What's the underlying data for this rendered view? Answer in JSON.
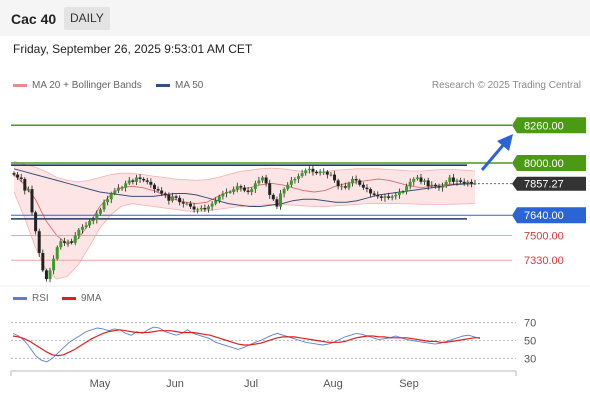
{
  "header": {
    "symbol": "Cac 40",
    "period": "DAILY"
  },
  "timestamp": "Friday, September 26, 2025 9:53:01 AM CET",
  "credit": "Research © 2025 Trading Central",
  "legend": {
    "ma20_label": "MA 20 + Bollinger Bands",
    "ma50_label": "MA 50",
    "rsi_label": "RSI",
    "rsi_ma_label": "9MA"
  },
  "colors": {
    "green": "#4a9a14",
    "blue": "#2a64d6",
    "navy": "#1e3a6a",
    "red": "#d93a3a",
    "bollinger_fill": "#fde0e0",
    "ma50": "#3a4e78",
    "rsi": "#5b7fd6",
    "rsi_ma": "#e02020",
    "current": "#333333"
  },
  "chart_data": [
    {
      "type": "candlestick",
      "x_ticks": [
        "May",
        "Jun",
        "Jul",
        "Aug",
        "Sep"
      ],
      "ylim": [
        7180,
        8310
      ],
      "current_price": "7857.27",
      "levels": [
        {
          "label": "8260.00",
          "value": 8260,
          "style": "box",
          "color": "green"
        },
        {
          "label": "8000.00",
          "value": 8000,
          "style": "box",
          "color": "green"
        },
        {
          "label": "7640.00",
          "value": 7640,
          "style": "box",
          "color": "blue"
        },
        {
          "label": "7500.00",
          "value": 7500,
          "style": "text",
          "color": "red"
        },
        {
          "label": "7330.00",
          "value": 7330,
          "style": "text",
          "color": "red"
        }
      ],
      "closes": [
        7920,
        7900,
        7890,
        7810,
        7820,
        7660,
        7530,
        7380,
        7260,
        7200,
        7260,
        7340,
        7420,
        7460,
        7450,
        7460,
        7450,
        7500,
        7540,
        7560,
        7570,
        7600,
        7610,
        7650,
        7680,
        7730,
        7750,
        7790,
        7810,
        7830,
        7830,
        7860,
        7880,
        7870,
        7900,
        7890,
        7880,
        7870,
        7850,
        7820,
        7810,
        7790,
        7780,
        7740,
        7770,
        7760,
        7730,
        7720,
        7720,
        7700,
        7680,
        7680,
        7690,
        7680,
        7700,
        7720,
        7740,
        7770,
        7790,
        7800,
        7800,
        7820,
        7840,
        7830,
        7810,
        7800,
        7820,
        7860,
        7880,
        7900,
        7860,
        7780,
        7750,
        7700,
        7790,
        7820,
        7850,
        7880,
        7890,
        7910,
        7930,
        7950,
        7960,
        7940,
        7930,
        7940,
        7940,
        7920,
        7920,
        7880,
        7840,
        7840,
        7830,
        7860,
        7890,
        7880,
        7850,
        7830,
        7820,
        7790,
        7780,
        7770,
        7760,
        7770,
        7760,
        7770,
        7780,
        7800,
        7800,
        7840,
        7870,
        7890,
        7900,
        7870,
        7880,
        7840,
        7850,
        7840,
        7830,
        7840,
        7870,
        7900,
        7870,
        7880,
        7870,
        7860,
        7870,
        7860,
        7860
      ],
      "ma50": [
        7960,
        7940,
        7920,
        7900,
        7880,
        7860,
        7840,
        7820,
        7800,
        7790,
        7780,
        7770,
        7770,
        7770,
        7780,
        7790,
        7790,
        7780,
        7760,
        7740,
        7720,
        7710,
        7700,
        7700,
        7710,
        7720,
        7740,
        7750,
        7750,
        7740,
        7730,
        7730,
        7740,
        7760,
        7780,
        7790,
        7800,
        7810,
        7820,
        7830,
        7840,
        7850,
        7855,
        7857
      ],
      "ma20": [
        7920,
        7850,
        7750,
        7600,
        7500,
        7440,
        7480,
        7580,
        7700,
        7780,
        7830,
        7840,
        7830,
        7810,
        7780,
        7750,
        7730,
        7720,
        7730,
        7770,
        7800,
        7820,
        7830,
        7850,
        7860,
        7850,
        7830,
        7810,
        7800,
        7810,
        7840,
        7860,
        7870,
        7880,
        7890,
        7880,
        7860,
        7840,
        7830,
        7840,
        7850,
        7855,
        7860,
        7858
      ],
      "bollinger_upper": [
        8010,
        7990,
        7970,
        7940,
        7900,
        7880,
        7870,
        7880,
        7900,
        7920,
        7930,
        7930,
        7920,
        7910,
        7900,
        7890,
        7885,
        7880,
        7885,
        7900,
        7920,
        7940,
        7950,
        7960,
        7965,
        7960,
        7950,
        7940,
        7935,
        7940,
        7950,
        7955,
        7960,
        7960,
        7960,
        7955,
        7950,
        7945,
        7945,
        7950,
        7955,
        7955,
        7950,
        7945
      ],
      "bollinger_lower": [
        7800,
        7620,
        7420,
        7260,
        7200,
        7220,
        7300,
        7420,
        7550,
        7640,
        7700,
        7720,
        7710,
        7700,
        7690,
        7680,
        7670,
        7665,
        7670,
        7680,
        7690,
        7700,
        7705,
        7710,
        7715,
        7715,
        7710,
        7705,
        7700,
        7700,
        7705,
        7710,
        7715,
        7720,
        7720,
        7720,
        7720,
        7718,
        7715,
        7715,
        7715,
        7716,
        7718,
        7720
      ]
    },
    {
      "type": "line",
      "levels": [
        30,
        50,
        70
      ],
      "ylim": [
        18,
        82
      ],
      "series": [
        {
          "name": "RSI",
          "values": [
            58,
            55,
            50,
            42,
            33,
            28,
            26,
            30,
            36,
            42,
            48,
            52,
            56,
            60,
            62,
            64,
            63,
            61,
            63,
            62,
            58,
            56,
            60,
            58,
            62,
            65,
            64,
            60,
            58,
            56,
            58,
            62,
            58,
            56,
            54,
            52,
            48,
            46,
            44,
            42,
            40,
            42,
            45,
            48,
            50,
            53,
            56,
            58,
            56,
            54,
            52,
            50,
            48,
            47,
            46,
            45,
            46,
            48,
            51,
            54,
            56,
            58,
            57,
            55,
            53,
            51,
            52,
            53,
            55,
            53,
            51,
            50,
            49,
            48,
            47,
            46,
            47,
            49,
            51,
            53,
            55,
            56,
            54,
            52
          ]
        },
        {
          "name": "9MA",
          "values": [
            55,
            54,
            52,
            49,
            45,
            41,
            37,
            34,
            33,
            34,
            37,
            40,
            44,
            48,
            52,
            55,
            58,
            60,
            61,
            62,
            61,
            60,
            59,
            59,
            59,
            60,
            61,
            61,
            61,
            60,
            59,
            59,
            59,
            58,
            57,
            56,
            54,
            52,
            50,
            48,
            46,
            45,
            45,
            46,
            47,
            49,
            51,
            53,
            54,
            54,
            54,
            53,
            52,
            51,
            50,
            49,
            48,
            48,
            48,
            49,
            51,
            53,
            54,
            55,
            55,
            54,
            54,
            53,
            53,
            53,
            53,
            52,
            51,
            50,
            49,
            49,
            48,
            48,
            49,
            50,
            51,
            52,
            53,
            53
          ]
        }
      ]
    }
  ]
}
